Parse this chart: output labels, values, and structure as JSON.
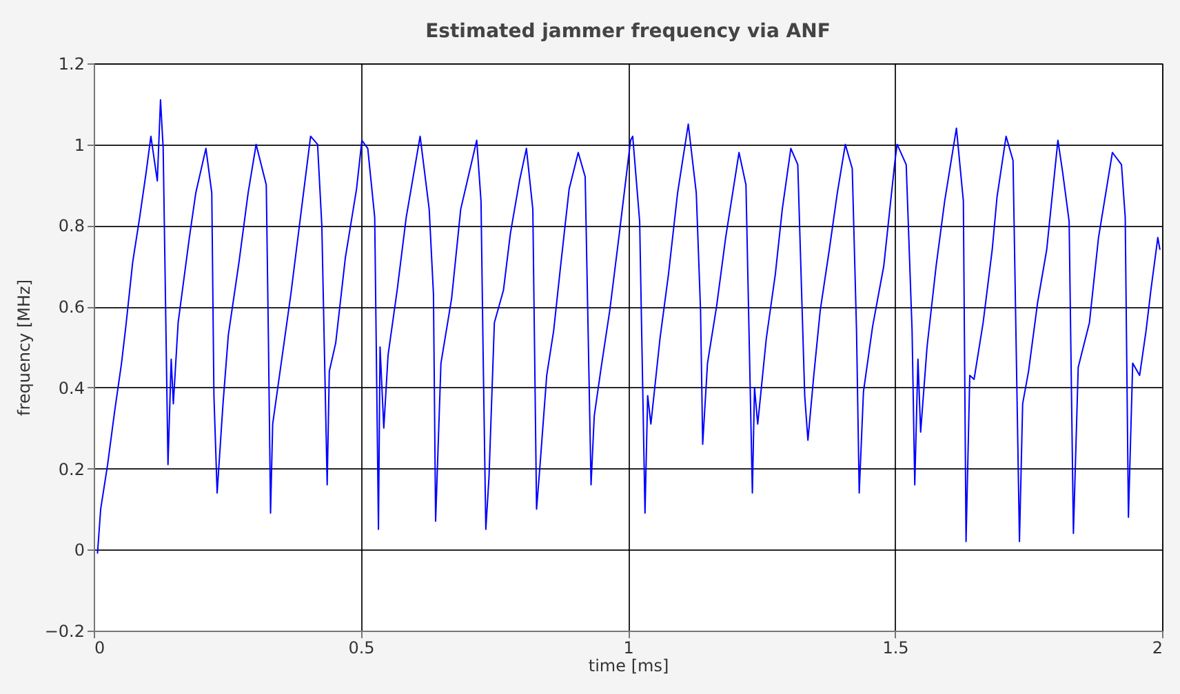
{
  "chart_data": {
    "type": "line",
    "title": "Estimated jammer frequency via ANF",
    "xlabel": "time  [ms]",
    "ylabel": "frequency  [MHz]",
    "xlim": [
      0,
      2
    ],
    "xticks": [
      0,
      0.5,
      1,
      1.5,
      2
    ],
    "ylim": [
      -0.2,
      1.2
    ],
    "yticks": [
      -0.2,
      0,
      0.2,
      0.4,
      0.6,
      0.8,
      1,
      1.2
    ],
    "grid": true,
    "marker": "none",
    "line_style": "solid",
    "series": [
      {
        "color": "#0000ff",
        "x": [
          0.007,
          0.013,
          0.026,
          0.039,
          0.052,
          0.06,
          0.073,
          0.086,
          0.098,
          0.107,
          0.119,
          0.125,
          0.13,
          0.139,
          0.145,
          0.149,
          0.158,
          0.179,
          0.191,
          0.21,
          0.221,
          0.225,
          0.231,
          0.242,
          0.252,
          0.272,
          0.289,
          0.304,
          0.323,
          0.327,
          0.331,
          0.335,
          0.352,
          0.369,
          0.386,
          0.406,
          0.419,
          0.427,
          0.437,
          0.441,
          0.453,
          0.471,
          0.492,
          0.502,
          0.513,
          0.526,
          0.533,
          0.536,
          0.543,
          0.551,
          0.568,
          0.585,
          0.611,
          0.628,
          0.636,
          0.64,
          0.65,
          0.67,
          0.687,
          0.717,
          0.725,
          0.729,
          0.734,
          0.74,
          0.75,
          0.767,
          0.78,
          0.797,
          0.81,
          0.822,
          0.829,
          0.835,
          0.848,
          0.861,
          0.874,
          0.89,
          0.907,
          0.92,
          0.931,
          0.937,
          0.95,
          0.966,
          0.983,
          1.005,
          1.009,
          1.022,
          1.032,
          1.037,
          1.043,
          1.06,
          1.076,
          1.093,
          1.113,
          1.128,
          1.136,
          1.14,
          1.149,
          1.166,
          1.183,
          1.208,
          1.221,
          1.233,
          1.237,
          1.243,
          1.259,
          1.276,
          1.289,
          1.305,
          1.318,
          1.331,
          1.337,
          1.348,
          1.36,
          1.377,
          1.392,
          1.407,
          1.42,
          1.428,
          1.433,
          1.441,
          1.458,
          1.479,
          1.5,
          1.504,
          1.521,
          1.532,
          1.537,
          1.543,
          1.548,
          1.56,
          1.577,
          1.593,
          1.615,
          1.628,
          1.633,
          1.64,
          1.648,
          1.665,
          1.682,
          1.691,
          1.708,
          1.721,
          1.733,
          1.739,
          1.75,
          1.767,
          1.784,
          1.805,
          1.814,
          1.826,
          1.834,
          1.843,
          1.864,
          1.881,
          1.907,
          1.924,
          1.931,
          1.937,
          1.945,
          1.958,
          1.97,
          1.979,
          1.992,
          1.996
        ],
        "values": [
          -0.01,
          0.1,
          0.21,
          0.34,
          0.46,
          0.55,
          0.71,
          0.82,
          0.93,
          1.02,
          0.91,
          1.11,
          0.99,
          0.21,
          0.47,
          0.36,
          0.56,
          0.77,
          0.88,
          0.99,
          0.88,
          0.38,
          0.14,
          0.36,
          0.53,
          0.71,
          0.88,
          1.0,
          0.9,
          0.52,
          0.09,
          0.31,
          0.47,
          0.63,
          0.81,
          1.02,
          1.0,
          0.8,
          0.16,
          0.44,
          0.51,
          0.72,
          0.89,
          1.01,
          0.99,
          0.82,
          0.05,
          0.5,
          0.3,
          0.48,
          0.64,
          0.82,
          1.02,
          0.84,
          0.63,
          0.07,
          0.46,
          0.62,
          0.84,
          1.01,
          0.86,
          0.48,
          0.05,
          0.18,
          0.56,
          0.64,
          0.78,
          0.91,
          0.99,
          0.84,
          0.1,
          0.2,
          0.43,
          0.54,
          0.7,
          0.89,
          0.98,
          0.92,
          0.16,
          0.33,
          0.45,
          0.59,
          0.77,
          1.01,
          1.02,
          0.81,
          0.09,
          0.38,
          0.31,
          0.52,
          0.68,
          0.88,
          1.05,
          0.88,
          0.59,
          0.26,
          0.46,
          0.6,
          0.77,
          0.98,
          0.9,
          0.14,
          0.4,
          0.31,
          0.52,
          0.68,
          0.84,
          0.99,
          0.95,
          0.38,
          0.27,
          0.43,
          0.59,
          0.74,
          0.88,
          1.0,
          0.94,
          0.54,
          0.14,
          0.39,
          0.55,
          0.7,
          0.96,
          1.0,
          0.95,
          0.54,
          0.16,
          0.47,
          0.29,
          0.5,
          0.7,
          0.86,
          1.04,
          0.86,
          0.02,
          0.43,
          0.42,
          0.56,
          0.74,
          0.87,
          1.02,
          0.96,
          0.02,
          0.36,
          0.44,
          0.61,
          0.74,
          1.01,
          0.93,
          0.81,
          0.04,
          0.45,
          0.56,
          0.77,
          0.98,
          0.95,
          0.82,
          0.08,
          0.46,
          0.43,
          0.54,
          0.64,
          0.77,
          0.74
        ]
      }
    ]
  }
}
